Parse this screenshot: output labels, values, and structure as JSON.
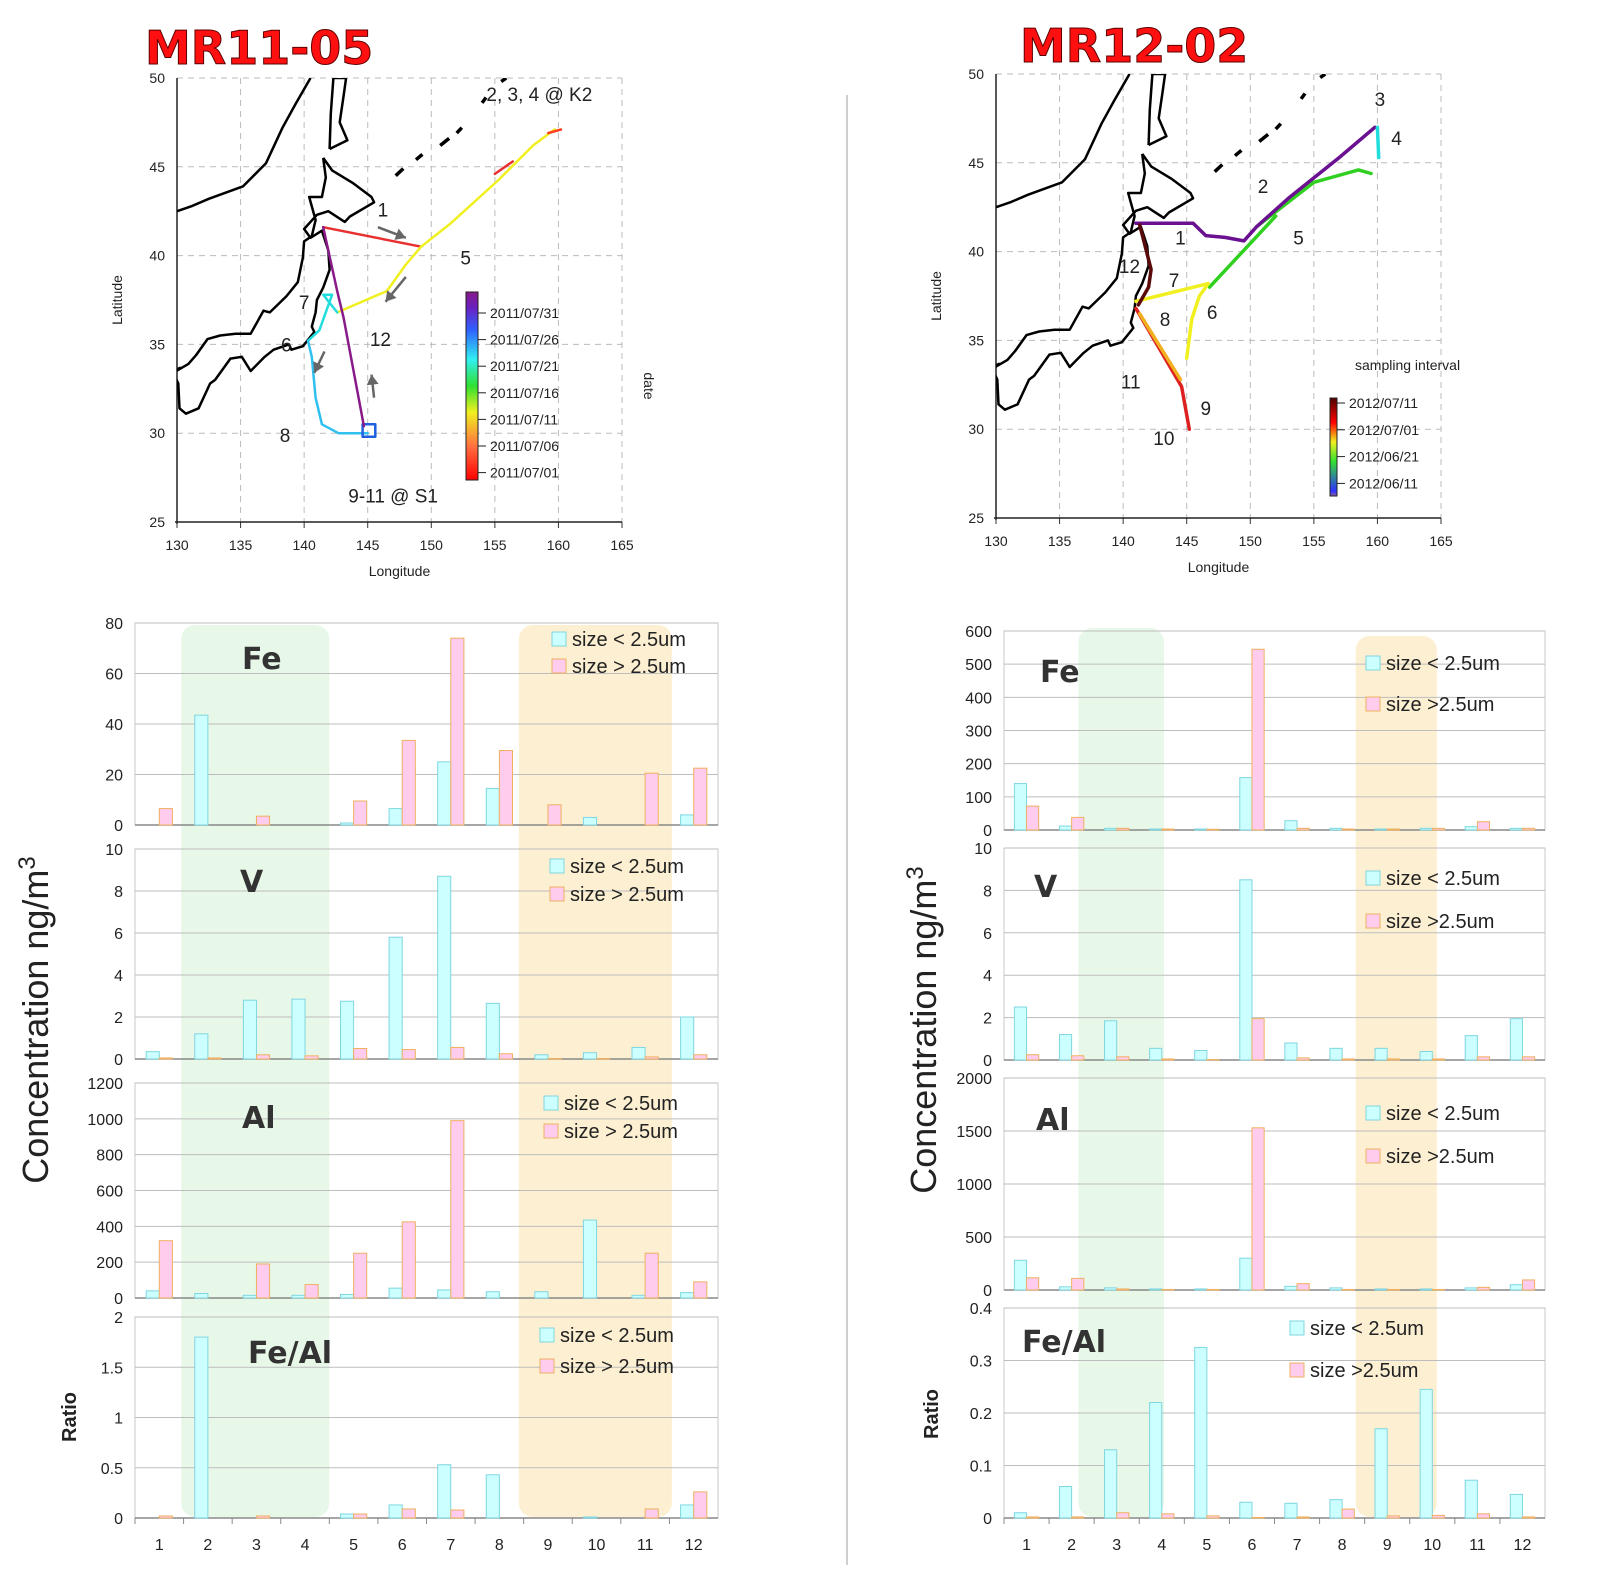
{
  "titles": {
    "left": "MR11-05",
    "right": "MR12-02"
  },
  "shared": {
    "concentration_label": "Concentration ng/m3",
    "ratio_label": "Ratio",
    "legend_small": "size < 2.5um",
    "legend_large_left": "size > 2.5um",
    "legend_large_right": "size >2.5um",
    "categories": [
      "1",
      "2",
      "3",
      "4",
      "5",
      "6",
      "7",
      "8",
      "9",
      "10",
      "11",
      "12"
    ]
  },
  "colors": {
    "small_fill": "#ccffff",
    "small_edge": "#7fd6e0",
    "large_fill": "#ffccee",
    "large_edge": "#f0b060",
    "green_band": "#e8f8e8",
    "orange_band": "#fdf0d2",
    "title_red": "#ff1010"
  },
  "maps": [
    {
      "xlabel": "Longitude",
      "ylabel": "Latitude",
      "x_ticks": [
        "130",
        "135",
        "140",
        "145",
        "150",
        "155",
        "160",
        "165"
      ],
      "y_ticks": [
        "25",
        "30",
        "35",
        "40",
        "45",
        "50"
      ],
      "xlim": [
        130,
        165
      ],
      "ylim": [
        25,
        50
      ],
      "colorbar_label": "date",
      "colorbar_ticks": [
        "2011/07/31",
        "2011/07/26",
        "2011/07/21",
        "2011/07/16",
        "2011/07/11",
        "2011/07/06",
        "2011/07/01"
      ],
      "annotations": [
        {
          "text": "2, 3, 4 @ K2",
          "lon": 158.5,
          "lat": 48.7
        },
        {
          "text": "1",
          "lon": 146.2,
          "lat": 42.2
        },
        {
          "text": "5",
          "lon": 152.7,
          "lat": 39.5
        },
        {
          "text": "7",
          "lon": 140.0,
          "lat": 37.0
        },
        {
          "text": "6",
          "lon": 138.6,
          "lat": 34.6
        },
        {
          "text": "12",
          "lon": 146.0,
          "lat": 34.9
        },
        {
          "text": "8",
          "lon": 138.5,
          "lat": 29.5
        },
        {
          "text": "9-11 @ S1",
          "lon": 147.0,
          "lat": 26.1
        }
      ]
    },
    {
      "xlabel": "Longitude",
      "ylabel": "Latitude",
      "x_ticks": [
        "130",
        "135",
        "140",
        "145",
        "150",
        "155",
        "160",
        "165"
      ],
      "y_ticks": [
        "25",
        "30",
        "35",
        "40",
        "45",
        "50"
      ],
      "xlim": [
        130,
        165
      ],
      "ylim": [
        25,
        50
      ],
      "colorbar_label": "sampling interval",
      "colorbar_ticks": [
        "2012/07/11",
        "2012/07/01",
        "2012/06/21",
        "2012/06/11"
      ],
      "annotations": [
        {
          "text": "3",
          "lon": 160.2,
          "lat": 48.2
        },
        {
          "text": "4",
          "lon": 161.5,
          "lat": 46.0
        },
        {
          "text": "2",
          "lon": 151.0,
          "lat": 43.3
        },
        {
          "text": "1",
          "lon": 144.5,
          "lat": 40.4
        },
        {
          "text": "5",
          "lon": 153.8,
          "lat": 40.4
        },
        {
          "text": "12",
          "lon": 140.5,
          "lat": 38.8
        },
        {
          "text": "7",
          "lon": 144.0,
          "lat": 38.0
        },
        {
          "text": "6",
          "lon": 147.0,
          "lat": 36.2
        },
        {
          "text": "8",
          "lon": 143.3,
          "lat": 35.8
        },
        {
          "text": "11",
          "lon": 140.6,
          "lat": 32.3
        },
        {
          "text": "9",
          "lon": 146.5,
          "lat": 30.8
        },
        {
          "text": "10",
          "lon": 143.2,
          "lat": 29.1
        }
      ]
    }
  ],
  "chart_data": [
    {
      "type": "bar",
      "panel": "MR11-05",
      "title": "Fe",
      "ylim": [
        0,
        80
      ],
      "yticks": [
        "0",
        "20",
        "40",
        "60",
        "80"
      ],
      "categories": [
        "1",
        "2",
        "3",
        "4",
        "5",
        "6",
        "7",
        "8",
        "9",
        "10",
        "11",
        "12"
      ],
      "series": [
        {
          "name": "size < 2.5um",
          "values": [
            0,
            43.5,
            0,
            0,
            0.8,
            6.5,
            25,
            14.5,
            0,
            3,
            0,
            4
          ]
        },
        {
          "name": "size > 2.5um",
          "values": [
            6.5,
            0,
            3.5,
            0,
            9.5,
            33.5,
            74,
            29.5,
            8,
            0,
            20.5,
            22.5
          ]
        }
      ]
    },
    {
      "type": "bar",
      "panel": "MR11-05",
      "title": "V",
      "ylim": [
        0,
        10
      ],
      "yticks": [
        "0",
        "2",
        "4",
        "6",
        "8",
        "10"
      ],
      "categories": [
        "1",
        "2",
        "3",
        "4",
        "5",
        "6",
        "7",
        "8",
        "9",
        "10",
        "11",
        "12"
      ],
      "series": [
        {
          "name": "size < 2.5um",
          "values": [
            0.35,
            1.2,
            2.8,
            2.85,
            2.75,
            5.8,
            8.7,
            2.65,
            0.2,
            0.3,
            0.55,
            2.0
          ]
        },
        {
          "name": "size > 2.5um",
          "values": [
            0.05,
            0.05,
            0.2,
            0.15,
            0.5,
            0.45,
            0.55,
            0.25,
            0.02,
            0.02,
            0.1,
            0.2
          ]
        }
      ]
    },
    {
      "type": "bar",
      "panel": "MR11-05",
      "title": "Al",
      "ylim": [
        0,
        1200
      ],
      "yticks": [
        "0",
        "200",
        "400",
        "600",
        "800",
        "1000",
        "1200"
      ],
      "categories": [
        "1",
        "2",
        "3",
        "4",
        "5",
        "6",
        "7",
        "8",
        "9",
        "10",
        "11",
        "12"
      ],
      "series": [
        {
          "name": "size < 2.5um",
          "values": [
            40,
            25,
            15,
            15,
            20,
            55,
            45,
            35,
            35,
            435,
            15,
            30
          ]
        },
        {
          "name": "size > 2.5um",
          "values": [
            320,
            0,
            190,
            75,
            250,
            425,
            990,
            0,
            0,
            0,
            250,
            90
          ]
        }
      ]
    },
    {
      "type": "bar",
      "panel": "MR11-05",
      "title": "Fe/Al",
      "ylabel": "Ratio",
      "ylim": [
        0,
        2
      ],
      "yticks": [
        "0",
        "0.5",
        "1",
        "1.5",
        "2"
      ],
      "categories": [
        "1",
        "2",
        "3",
        "4",
        "5",
        "6",
        "7",
        "8",
        "9",
        "10",
        "11",
        "12"
      ],
      "series": [
        {
          "name": "size < 2.5um",
          "values": [
            0,
            1.8,
            0,
            0,
            0.04,
            0.13,
            0.53,
            0.43,
            0,
            0.01,
            0,
            0.13
          ]
        },
        {
          "name": "size > 2.5um",
          "values": [
            0.02,
            0,
            0.02,
            0,
            0.04,
            0.09,
            0.08,
            0,
            0,
            0,
            0.09,
            0.26
          ]
        }
      ]
    },
    {
      "type": "bar",
      "panel": "MR12-02",
      "title": "Fe",
      "ylim": [
        0,
        600
      ],
      "yticks": [
        "0",
        "100",
        "200",
        "300",
        "400",
        "500",
        "600"
      ],
      "categories": [
        "1",
        "2",
        "3",
        "4",
        "5",
        "6",
        "7",
        "8",
        "9",
        "10",
        "11",
        "12"
      ],
      "series": [
        {
          "name": "size < 2.5um",
          "values": [
            140,
            12,
            5,
            3,
            3,
            158,
            28,
            5,
            3,
            5,
            10,
            5
          ]
        },
        {
          "name": "size >2.5um",
          "values": [
            72,
            38,
            5,
            3,
            2,
            545,
            5,
            3,
            3,
            5,
            25,
            5
          ]
        }
      ]
    },
    {
      "type": "bar",
      "panel": "MR12-02",
      "title": "V",
      "ylim": [
        0,
        10
      ],
      "yticks": [
        "0",
        "2",
        "4",
        "6",
        "8",
        "10"
      ],
      "categories": [
        "1",
        "2",
        "3",
        "4",
        "5",
        "6",
        "7",
        "8",
        "9",
        "10",
        "11",
        "12"
      ],
      "series": [
        {
          "name": "size < 2.5um",
          "values": [
            2.5,
            1.2,
            1.85,
            0.55,
            0.45,
            8.5,
            0.8,
            0.55,
            0.55,
            0.4,
            1.15,
            1.95
          ]
        },
        {
          "name": "size >2.5um",
          "values": [
            0.25,
            0.2,
            0.15,
            0.05,
            0.02,
            1.95,
            0.1,
            0.05,
            0.05,
            0.05,
            0.15,
            0.15
          ]
        }
      ]
    },
    {
      "type": "bar",
      "panel": "MR12-02",
      "title": "Al",
      "ylim": [
        0,
        2000
      ],
      "yticks": [
        "0",
        "500",
        "1000",
        "1500",
        "2000"
      ],
      "categories": [
        "1",
        "2",
        "3",
        "4",
        "5",
        "6",
        "7",
        "8",
        "9",
        "10",
        "11",
        "12"
      ],
      "series": [
        {
          "name": "size < 2.5um",
          "values": [
            280,
            30,
            20,
            10,
            10,
            300,
            35,
            20,
            10,
            10,
            20,
            50
          ]
        },
        {
          "name": "size >2.5um",
          "values": [
            115,
            110,
            10,
            5,
            5,
            1530,
            60,
            5,
            5,
            5,
            25,
            95
          ]
        }
      ]
    },
    {
      "type": "bar",
      "panel": "MR12-02",
      "title": "Fe/Al",
      "ylabel": "Ratio",
      "ylim": [
        0,
        0.4
      ],
      "yticks": [
        "0",
        "0.1",
        "0.2",
        "0.3",
        "0.4"
      ],
      "categories": [
        "1",
        "2",
        "3",
        "4",
        "5",
        "6",
        "7",
        "8",
        "9",
        "10",
        "11",
        "12"
      ],
      "series": [
        {
          "name": "size < 2.5um",
          "values": [
            0.01,
            0.06,
            0.13,
            0.22,
            0.325,
            0.03,
            0.028,
            0.035,
            0.17,
            0.245,
            0.072,
            0.045
          ]
        },
        {
          "name": "size >2.5um",
          "values": [
            0.002,
            0.002,
            0.01,
            0.008,
            0.004,
            0.001,
            0.002,
            0.017,
            0.004,
            0.005,
            0.008,
            0.002
          ]
        }
      ]
    }
  ]
}
